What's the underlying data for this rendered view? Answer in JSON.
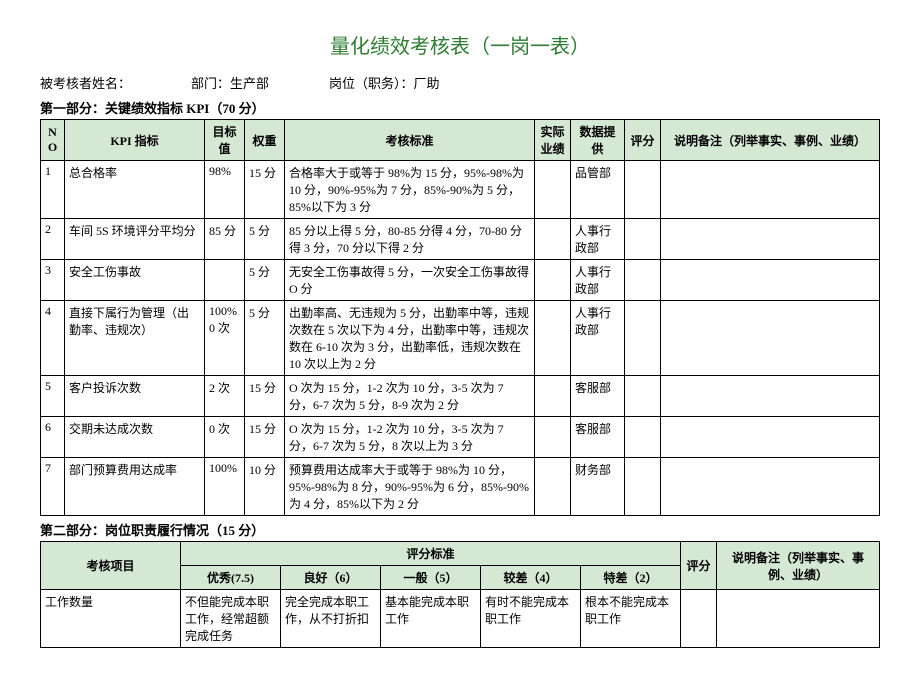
{
  "title": "量化绩效考核表（一岗一表）",
  "header": {
    "name_label": "被考核者姓名：",
    "dept_label": "部门：生产部",
    "position_label": "岗位（职务）：厂助"
  },
  "section1_title": "第一部分：关键绩效指标 KPI（70 分）",
  "t1_headers": {
    "no": "NO",
    "kpi": "KPI 指标",
    "target": "目标值",
    "weight": "权重",
    "standard": "考核标准",
    "actual": "实际业绩",
    "source": "数据提供",
    "score": "评分",
    "note": "说明备注（列举事实、事例、业绩）"
  },
  "t1_rows": [
    {
      "no": "1",
      "kpi": "总合格率",
      "target": "98%",
      "weight": "15 分",
      "standard": "合格率大于或等于 98%为 15 分，95%-98%为 10 分，90%-95%为 7 分，85%-90%为 5 分，85%以下为 3 分",
      "source": "品管部"
    },
    {
      "no": "2",
      "kpi": "车间 5S 环境评分平均分",
      "target": "85 分",
      "weight": "5 分",
      "standard": "85 分以上得 5 分，80-85 分得 4 分，70-80 分得 3 分，70 分以下得 2 分",
      "source": "人事行政部"
    },
    {
      "no": "3",
      "kpi": "安全工伤事故",
      "target": "",
      "weight": "5 分",
      "standard": "无安全工伤事故得 5 分，一次安全工伤事故得 O 分",
      "source": "人事行政部"
    },
    {
      "no": "4",
      "kpi": "直接下属行为管理（出勤率、违规次）",
      "target": "100% 0 次",
      "weight": "5 分",
      "standard": "出勤率高、无违规为 5 分，出勤率中等，违规次数在 5 次以下为 4 分，出勤率中等，违规次数在 6-10 次为 3 分，出勤率低，违规次数在 10 次以上为 2 分",
      "source": "人事行政部"
    },
    {
      "no": "5",
      "kpi": "客户投诉次数",
      "target": "2 次",
      "weight": "15 分",
      "standard": "O 次为 15 分，1-2 次为 10 分，3-5 次为 7 分，6-7 次为 5 分，8-9 次为 2 分",
      "source": "客服部"
    },
    {
      "no": "6",
      "kpi": "交期未达成次数",
      "target": "0 次",
      "weight": "15 分",
      "standard": "O 次为 15 分，1-2 次为 10 分，3-5 次为 7 分，6-7 次为 5 分，8 次以上为 3 分",
      "source": "客服部"
    },
    {
      "no": "7",
      "kpi": "部门预算费用达成率",
      "target": "100%",
      "weight": "10 分",
      "standard": "预算费用达成率大于或等于 98%为 10 分，95%-98%为 8 分，90%-95%为 6 分，85%-90%为 4 分，85%以下为 2 分",
      "source": "财务部"
    }
  ],
  "section2_title": "第二部分：岗位职责履行情况（15 分）",
  "t2_headers": {
    "item": "考核项目",
    "stdgroup": "评分标准",
    "l1": "优秀(7.5)",
    "l2": "良好（6）",
    "l3": "一般（5）",
    "l4": "较差（4）",
    "l5": "特差（2）",
    "score": "评分",
    "note": "说明备注（列举事实、事例、业绩）"
  },
  "t2_rows": [
    {
      "item": "工作数量",
      "l1": "不但能完成本职工作，经常超额完成任务",
      "l2": "完全完成本职工作，从不打折扣",
      "l3": "基本能完成本职工作",
      "l4": "有时不能完成本职工作",
      "l5": "根本不能完成本职工作"
    }
  ]
}
